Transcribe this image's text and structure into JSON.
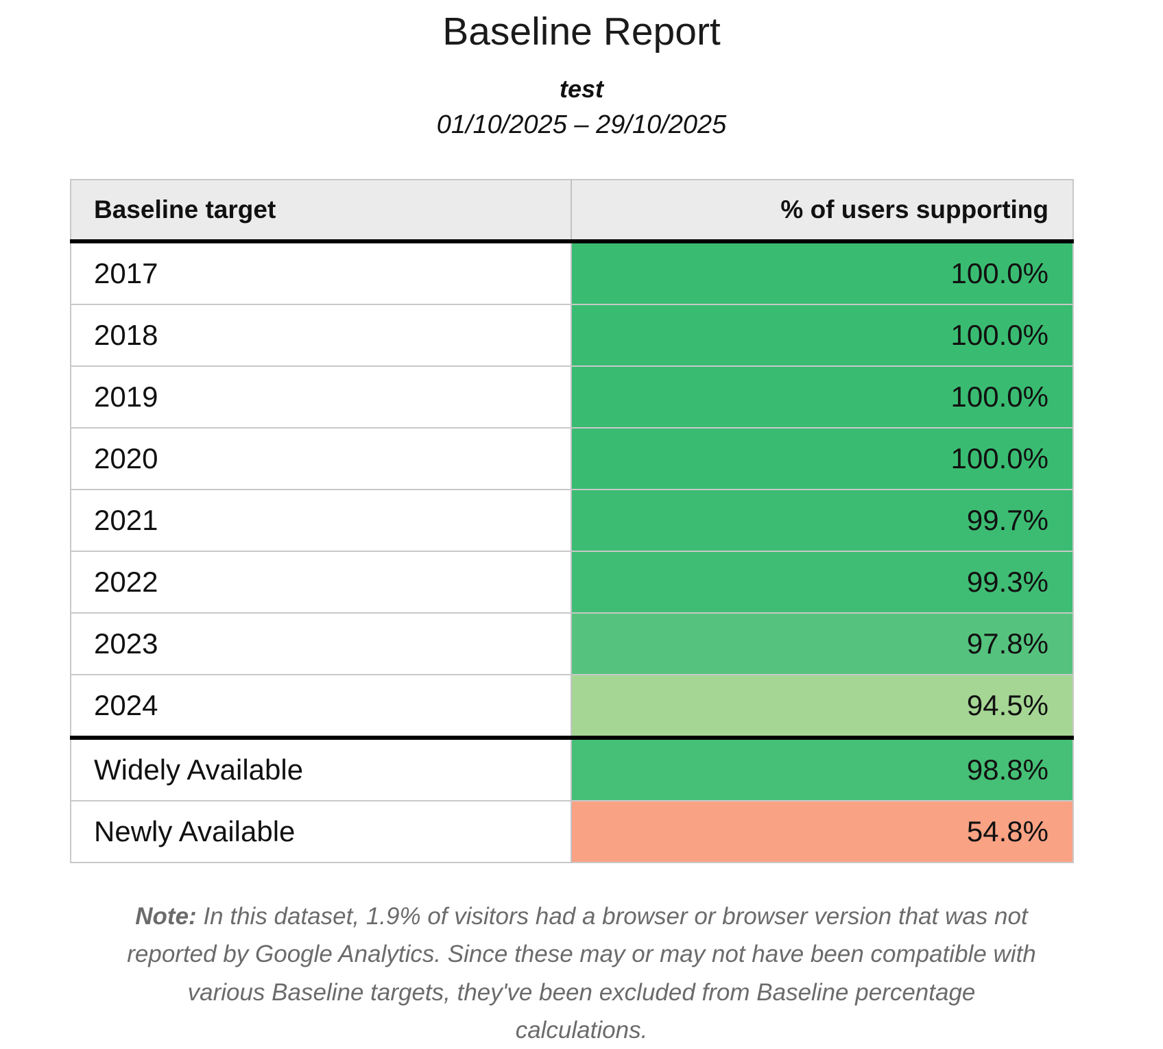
{
  "report": {
    "title": "Baseline Report",
    "subtitle": "test",
    "date_range": "01/10/2025 – 29/10/2025"
  },
  "table": {
    "columns": {
      "target": "Baseline target",
      "support": "% of users supporting"
    },
    "rows": [
      {
        "target": "2017",
        "pct": "100.0%",
        "color": "#39bc71",
        "divider_before": false
      },
      {
        "target": "2018",
        "pct": "100.0%",
        "color": "#39bc71",
        "divider_before": false
      },
      {
        "target": "2019",
        "pct": "100.0%",
        "color": "#39bc71",
        "divider_before": false
      },
      {
        "target": "2020",
        "pct": "100.0%",
        "color": "#39bc71",
        "divider_before": false
      },
      {
        "target": "2021",
        "pct": "99.7%",
        "color": "#3bbc72",
        "divider_before": false
      },
      {
        "target": "2022",
        "pct": "99.3%",
        "color": "#3fbd74",
        "divider_before": false
      },
      {
        "target": "2023",
        "pct": "97.8%",
        "color": "#55c37e",
        "divider_before": false
      },
      {
        "target": "2024",
        "pct": "94.5%",
        "color": "#a5d694",
        "divider_before": false
      },
      {
        "target": "Widely Available",
        "pct": "98.8%",
        "color": "#45c076",
        "divider_before": true
      },
      {
        "target": "Newly Available",
        "pct": "54.8%",
        "color": "#faa284",
        "divider_before": false
      }
    ]
  },
  "note": {
    "label": "Note:",
    "text": "In this dataset, 1.9% of visitors had a browser or browser version that was not reported by Google Analytics. Since these may or may not have been compatible with various Baseline targets, they've been excluded from Baseline percentage calculations."
  },
  "colors": {
    "header_bg": "#ebebeb",
    "thick_border": "#000000",
    "thin_border": "#c9c9c9",
    "note_text": "#6b6b6b"
  },
  "chart_data": {
    "type": "table",
    "title": "Baseline Report",
    "categories": [
      "2017",
      "2018",
      "2019",
      "2020",
      "2021",
      "2022",
      "2023",
      "2024",
      "Widely Available",
      "Newly Available"
    ],
    "values": [
      100.0,
      100.0,
      100.0,
      100.0,
      99.7,
      99.3,
      97.8,
      94.5,
      98.8,
      54.8
    ],
    "value_label": "% of users supporting"
  }
}
